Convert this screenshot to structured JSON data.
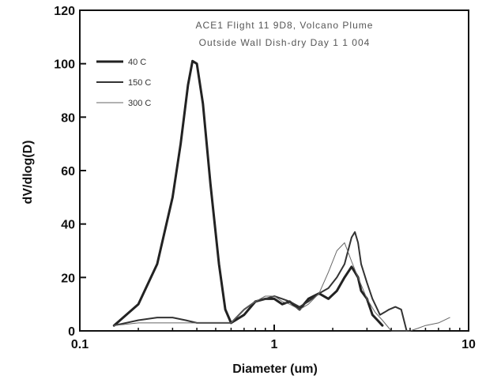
{
  "chart_data": {
    "type": "line",
    "title": "ACE1 Flight 11 9D8, Volcano Plume",
    "subtitle": "Outside Wall Dish-dry Day 1 1 004",
    "xlabel": "Diameter (um)",
    "ylabel": "dV/dlog(D)",
    "xscale": "log",
    "xlim": [
      0.1,
      10
    ],
    "ylim": [
      0,
      120
    ],
    "x_ticks": [
      0.1,
      1,
      10
    ],
    "x_tick_labels": [
      "0.1",
      "1",
      "10"
    ],
    "y_ticks": [
      0,
      20,
      40,
      60,
      80,
      100,
      120
    ],
    "y_tick_labels": [
      "0",
      "20",
      "40",
      "60",
      "80",
      "100",
      "120"
    ],
    "grid": false,
    "legend_position": "top-left",
    "series": [
      {
        "name": "40 C",
        "color": "#222222",
        "width": 3,
        "x": [
          0.15,
          0.2,
          0.25,
          0.3,
          0.33,
          0.36,
          0.38,
          0.4,
          0.43,
          0.47,
          0.52,
          0.56,
          0.6,
          0.7,
          0.8,
          0.9,
          1.0,
          1.1,
          1.2,
          1.35,
          1.5,
          1.7,
          1.9,
          2.1,
          2.3,
          2.5,
          2.6,
          2.7,
          2.8,
          3.0,
          3.2,
          3.4,
          3.6
        ],
        "y": [
          2,
          10,
          25,
          50,
          70,
          92,
          101,
          100,
          85,
          55,
          25,
          8,
          3,
          6,
          11,
          12,
          12,
          10,
          11,
          8,
          12,
          14,
          12,
          15,
          20,
          24,
          22,
          20,
          15,
          12,
          6,
          4,
          2
        ]
      },
      {
        "name": "150 C",
        "color": "#333333",
        "width": 2,
        "x": [
          0.15,
          0.2,
          0.25,
          0.3,
          0.35,
          0.4,
          0.5,
          0.6,
          0.7,
          0.8,
          0.9,
          1.0,
          1.1,
          1.2,
          1.35,
          1.5,
          1.7,
          1.9,
          2.1,
          2.3,
          2.5,
          2.6,
          2.7,
          2.8,
          3.0,
          3.2,
          3.4,
          3.5,
          3.7,
          3.9,
          4.2,
          4.5,
          4.8
        ],
        "y": [
          2,
          4,
          5,
          5,
          4,
          3,
          3,
          3,
          8,
          11,
          12,
          13,
          12,
          11,
          9,
          11,
          14,
          16,
          20,
          25,
          35,
          37,
          33,
          25,
          18,
          12,
          8,
          6,
          7,
          8,
          9,
          8,
          0
        ]
      },
      {
        "name": "300 C",
        "color": "#666666",
        "width": 1,
        "x": [
          0.15,
          0.2,
          0.3,
          0.4,
          0.5,
          0.6,
          0.7,
          0.8,
          0.9,
          1.0,
          1.1,
          1.2,
          1.35,
          1.5,
          1.7,
          1.9,
          2.1,
          2.3,
          2.5,
          2.7,
          3.0,
          3.3,
          3.6,
          4.0,
          4.5,
          5.0,
          5.5,
          6.0,
          7.0,
          8.0
        ],
        "y": [
          2,
          3,
          3,
          3,
          3,
          3,
          8,
          11,
          13,
          13,
          11,
          10,
          8,
          10,
          14,
          22,
          30,
          33,
          26,
          20,
          12,
          7,
          4,
          0,
          0,
          0,
          1,
          2,
          3,
          5
        ]
      }
    ]
  }
}
